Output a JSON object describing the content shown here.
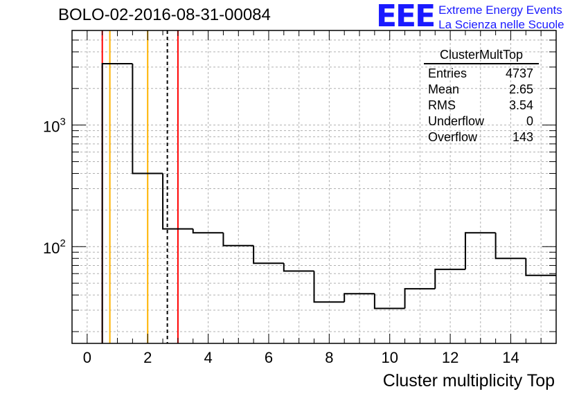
{
  "title": "BOLO-02-2016-08-31-00084",
  "logo": {
    "letters": "EEE",
    "line1": "Extreme Energy Events",
    "line2": "La Scienza nelle Scuole",
    "color": "#1a1aff"
  },
  "stats": {
    "name": "ClusterMultTop",
    "rows": [
      {
        "label": "Entries",
        "value": "4737"
      },
      {
        "label": "Mean",
        "value": "2.65"
      },
      {
        "label": "RMS",
        "value": "3.54"
      },
      {
        "label": "Underflow",
        "value": "0"
      },
      {
        "label": "Overflow",
        "value": "143"
      }
    ]
  },
  "chart_data": {
    "type": "bar",
    "style": "step-histogram",
    "bin_edges": [
      0.5,
      1.5,
      2.5,
      3.5,
      4.5,
      5.5,
      6.5,
      7.5,
      8.5,
      9.5,
      10.5,
      11.5,
      12.5,
      13.5,
      14.5,
      15.5
    ],
    "values": [
      3200,
      400,
      140,
      130,
      102,
      73,
      63,
      35,
      41,
      31,
      45,
      65,
      130,
      80,
      58
    ],
    "xlabel": "Cluster multiplicity Top",
    "ylabel": "",
    "xlim": [
      -0.5,
      15.5
    ],
    "ylim": [
      16,
      6000
    ],
    "y_scale": "log",
    "x_ticks": [
      0,
      2,
      4,
      6,
      8,
      10,
      12,
      14
    ],
    "y_tick_labels": [
      {
        "base": "10",
        "exp": "2",
        "value": 100
      },
      {
        "base": "10",
        "exp": "3",
        "value": 1000
      }
    ],
    "grid": true,
    "vertical_markers": [
      {
        "x": 0.5,
        "color": "#ff0000",
        "style": "solid"
      },
      {
        "x": 0.75,
        "color": "#ffb300",
        "style": "solid"
      },
      {
        "x": 2.0,
        "color": "#ffb300",
        "style": "solid"
      },
      {
        "x": 2.65,
        "color": "#000000",
        "style": "dashed"
      },
      {
        "x": 3.0,
        "color": "#ff0000",
        "style": "solid"
      }
    ]
  }
}
